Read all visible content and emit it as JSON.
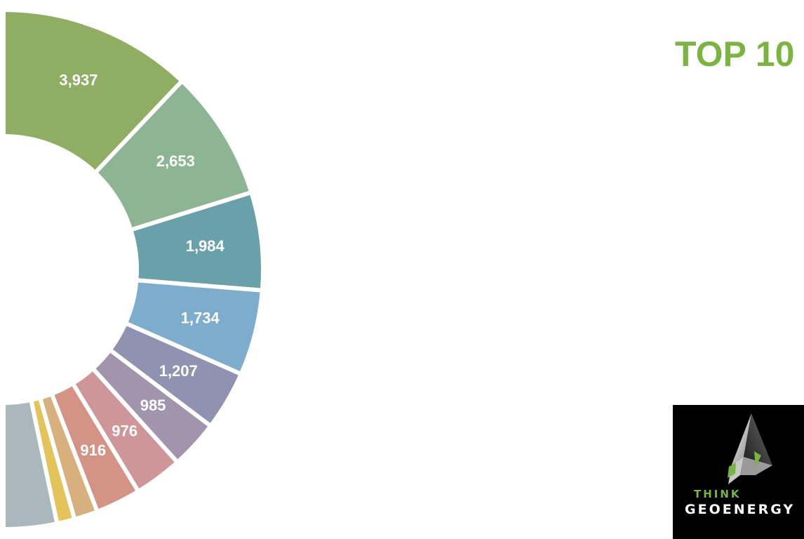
{
  "chart_data": {
    "type": "pie",
    "variant": "donut-partial",
    "title": "TOP 10",
    "slices": [
      {
        "label": "3,937",
        "value": 3937,
        "color": "#8fad63"
      },
      {
        "label": "2,653",
        "value": 2653,
        "color": "#8db594"
      },
      {
        "label": "1,984",
        "value": 1984,
        "color": "#6aa0a9"
      },
      {
        "label": "1,734",
        "value": 1734,
        "color": "#7eaccd"
      },
      {
        "label": "1,207",
        "value": 1207,
        "color": "#9092b2"
      },
      {
        "label": "985",
        "value": 985,
        "color": "#a394ae"
      },
      {
        "label": "976",
        "value": 976,
        "color": "#cf969a"
      },
      {
        "label": "916",
        "value": 916,
        "color": "#d39486"
      },
      {
        "label": "",
        "value": 480,
        "color": "#d8b07e"
      },
      {
        "label": "",
        "value": 360,
        "color": "#e3c45c"
      },
      {
        "label": "",
        "value": 1080,
        "color": "#aab7bd"
      }
    ]
  },
  "logo": {
    "line1": "THINK",
    "line2": "GEOENERGY",
    "icon": "geoenergy-arrow-icon"
  }
}
